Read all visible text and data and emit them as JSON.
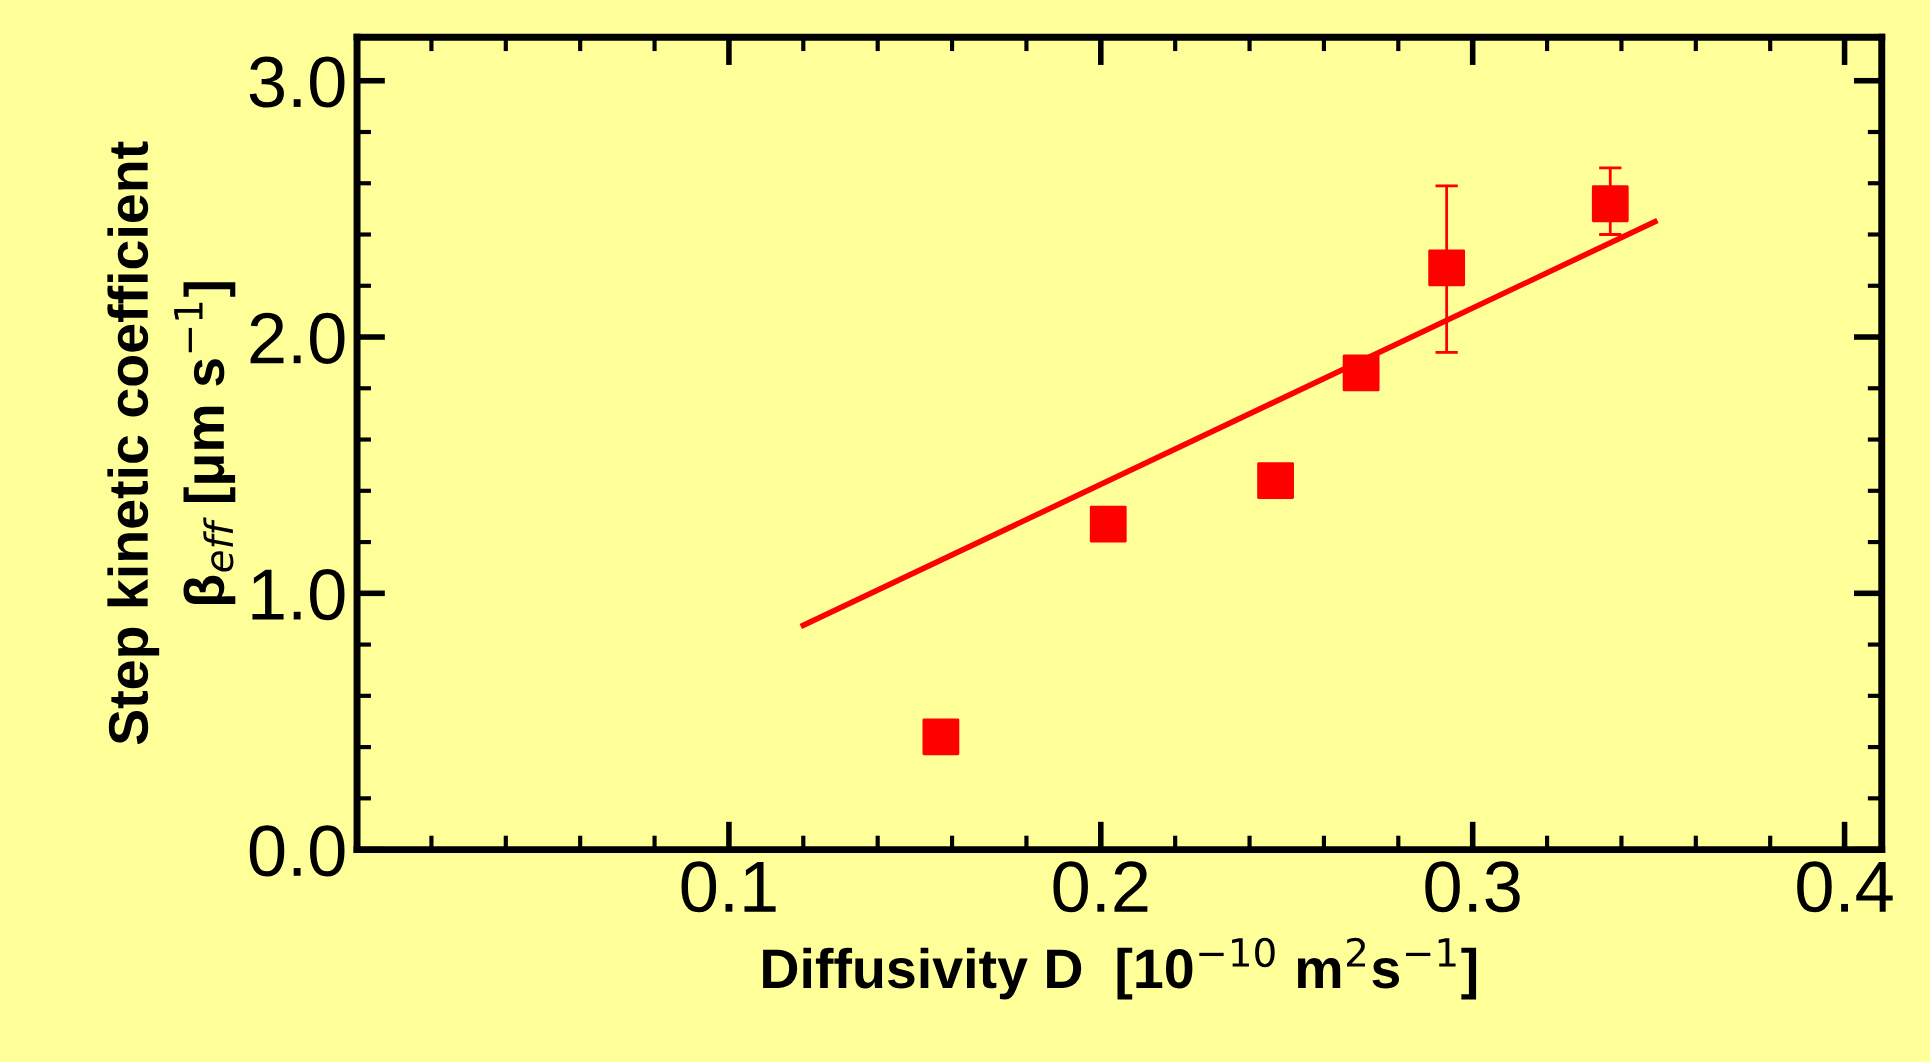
{
  "chart_data": {
    "type": "scatter",
    "xlabel": "Diffusivity D  [10$^{−10}$ m$^{2}$s$^{−1}$]",
    "ylabel": "Step kinetic coefficient\nβ$_{eff}$ [μm s$^{−1}$]",
    "xlim": [
      0,
      0.41
    ],
    "ylim": [
      0,
      3.17
    ],
    "xticks": [
      0.1,
      0.2,
      0.3,
      0.4
    ],
    "yticks": [
      {
        "value": 0,
        "label": "0.0"
      },
      {
        "value": 1,
        "label": "1.0"
      },
      {
        "value": 2,
        "label": "2.0"
      },
      {
        "value": 3,
        "label": "3.0"
      }
    ],
    "grid": false,
    "series": [
      {
        "marker": "square",
        "color": "#ff0000",
        "x": [
          0.157,
          0.202,
          0.247,
          0.27,
          0.293,
          0.337
        ],
        "values": [
          0.44,
          1.27,
          1.44,
          1.86,
          2.27,
          2.52
        ],
        "errors": [
          null,
          null,
          null,
          null,
          [
            1.94,
            2.59
          ],
          [
            2.4,
            2.66
          ]
        ]
      },
      {
        "type": "line",
        "color": "#ff0000",
        "x": [
          0.12,
          0.349
        ],
        "values": [
          0.875,
          2.45
        ]
      }
    ]
  }
}
